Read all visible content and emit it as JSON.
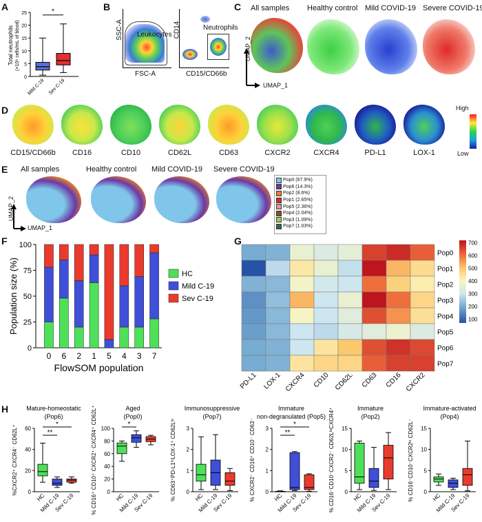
{
  "panels": {
    "a": "A",
    "b": "B",
    "c": "C",
    "d": "D",
    "e": "E",
    "f": "F",
    "g": "G",
    "h": "H"
  },
  "panel_a": {
    "ylabel_line1": "Total neutrophils",
    "ylabel_line2": "(×10⁶ cells/mL of blood)",
    "sig": "*",
    "categories": [
      "Mild C-19",
      "Sev C-19"
    ],
    "ticks": [
      "0",
      "5",
      "10",
      "15",
      "20",
      "25"
    ],
    "colors": [
      "#5b6fd8",
      "#e0302f"
    ]
  },
  "panel_b": {
    "plot1": {
      "ylabel": "SSC-A",
      "xlabel": "FSC-A",
      "gate": "Leukocytes"
    },
    "plot2": {
      "ylabel": "CD14",
      "xlabel": "CD15/CD66b",
      "gate": "Neutrophils"
    }
  },
  "panel_c": {
    "titles": [
      "All samples",
      "Healthy control",
      "Mild COVID-19",
      "Severe COVID-19"
    ],
    "axis_x": "UMAP_1",
    "axis_y": "UMAP_2"
  },
  "panel_d": {
    "markers": [
      "CD15/CD66b",
      "CD16",
      "CD10",
      "CD62L",
      "CD63",
      "CXCR2",
      "CXCR4",
      "PD-L1",
      "LOX-1"
    ],
    "scale_high": "High",
    "scale_low": "Low"
  },
  "panel_e": {
    "titles": [
      "All samples",
      "Healthy control",
      "Mild COVID-19",
      "Severe COVID-19"
    ],
    "axis_x": "UMAP_1",
    "axis_y": "UMAP_2",
    "legend": [
      {
        "label": "Pop0 (67.9%)",
        "color": "#7fc6ea"
      },
      {
        "label": "Pop6 (14.3%)",
        "color": "#6a3aa6"
      },
      {
        "label": "Pop2 (8.6%)",
        "color": "#e8822a"
      },
      {
        "label": "Pop1 (2.65%)",
        "color": "#d9262c"
      },
      {
        "label": "Pop5 (2.36%)",
        "color": "#d89aa0"
      },
      {
        "label": "Pop4 (2.04%)",
        "color": "#8a4b2a"
      },
      {
        "label": "Pop3 (1.09%)",
        "color": "#9ad14a"
      },
      {
        "label": "Pop7 (1.03%)",
        "color": "#2e6b52"
      }
    ]
  },
  "chart_data": [
    {
      "type": "bar",
      "stacked": true,
      "xlabel": "FlowSOM population",
      "ylabel": "Population size (%)",
      "ylim": [
        0,
        100
      ],
      "yticks": [
        "0",
        "25",
        "50",
        "75",
        "100"
      ],
      "categories": [
        "0",
        "6",
        "2",
        "1",
        "5",
        "4",
        "3",
        "7"
      ],
      "series": [
        {
          "name": "HC",
          "color": "#4fe05a",
          "values": [
            25,
            48,
            20,
            63,
            0,
            20,
            20,
            28
          ]
        },
        {
          "name": "Mild C-19",
          "color": "#3f4fd8",
          "values": [
            53,
            37,
            45,
            27,
            8,
            40,
            49,
            64
          ]
        },
        {
          "name": "Sev C-19",
          "color": "#ea3a2e",
          "values": [
            22,
            15,
            35,
            10,
            92,
            40,
            31,
            8
          ]
        }
      ],
      "legend_position": "right"
    },
    {
      "type": "heatmap",
      "columns": [
        "PD-L1",
        "LOX-1",
        "CXCR4",
        "CD10",
        "CD62L",
        "CD63",
        "CD16",
        "CXCR2"
      ],
      "rows": [
        "Pop0",
        "Pop1",
        "Pop2",
        "Pop3",
        "Pop4",
        "Pop5",
        "Pop6",
        "Pop7"
      ],
      "colorbar_ticks": [
        "100",
        "200",
        "300",
        "400",
        "500",
        "600",
        "700"
      ],
      "values": [
        [
          200,
          210,
          360,
          330,
          350,
          660,
          690,
          620
        ],
        [
          70,
          280,
          430,
          360,
          290,
          760,
          520,
          460
        ],
        [
          210,
          220,
          380,
          310,
          300,
          600,
          480,
          420
        ],
        [
          160,
          230,
          520,
          300,
          360,
          730,
          600,
          470
        ],
        [
          170,
          220,
          390,
          300,
          340,
          640,
          560,
          450
        ],
        [
          180,
          220,
          300,
          280,
          320,
          340,
          370,
          330
        ],
        [
          200,
          210,
          300,
          440,
          500,
          640,
          680,
          650
        ],
        [
          200,
          210,
          440,
          470,
          470,
          620,
          660,
          660
        ]
      ]
    },
    {
      "type": "box",
      "title": "Mature-homeostatic\n(Pop6)",
      "ylabel": "%CXCR2⁺ CXCR4⁻ CD62L⁺",
      "categories": [
        "HC",
        "Mild C-19",
        "Sev C-19"
      ],
      "ylim": [
        0,
        60
      ],
      "yticks": [
        "0",
        "20",
        "40",
        "60"
      ],
      "sig": [
        "**",
        "*"
      ],
      "boxes": [
        {
          "min": 9,
          "q1": 15,
          "median": 19,
          "q3": 26,
          "max": 46
        },
        {
          "min": 4,
          "q1": 6,
          "median": 8,
          "q3": 12,
          "max": 14
        },
        {
          "min": 8,
          "q1": 9,
          "median": 11,
          "q3": 12,
          "max": 14
        }
      ]
    },
    {
      "type": "box",
      "title": "Aged\n(Pop0)",
      "ylabel": "% CD16⁺ CD10⁺ CXCR2⁺ CXCR4⁺ CD62L⁺",
      "categories": [
        "HC",
        "Mild C-19",
        "Sev C-19"
      ],
      "ylim": [
        0,
        100
      ],
      "yticks": [
        "0",
        "20",
        "40",
        "60",
        "80",
        "100"
      ],
      "sig": [
        "*"
      ],
      "boxes": [
        {
          "min": 48,
          "q1": 60,
          "median": 72,
          "q3": 77,
          "max": 80
        },
        {
          "min": 70,
          "q1": 78,
          "median": 85,
          "q3": 90,
          "max": 96
        },
        {
          "min": 74,
          "q1": 79,
          "median": 83,
          "q3": 87,
          "max": 89
        }
      ]
    },
    {
      "type": "box",
      "title": "Immunosuppressive\n(Pop7)",
      "ylabel": "% CD63⁺PD-L1ʰⁱLOX-1⁺ CD62Lˡᵒ",
      "categories": [
        "HC",
        "Mild C-19",
        "Sev C-19"
      ],
      "ylim": [
        0,
        3
      ],
      "yticks": [
        "0",
        "1",
        "2",
        "3"
      ],
      "sig": [],
      "boxes": [
        {
          "min": 0.1,
          "q1": 0.5,
          "median": 0.8,
          "q3": 1.3,
          "max": 2.6
        },
        {
          "min": 0.1,
          "q1": 0.3,
          "median": 0.9,
          "q3": 1.5,
          "max": 2.7
        },
        {
          "min": 0.05,
          "q1": 0.3,
          "median": 0.5,
          "q3": 0.9,
          "max": 1.1
        }
      ]
    },
    {
      "type": "box",
      "title": "Immature\nnon-degranulated (Pop5)",
      "ylabel": "% CXCR2⁻ CD16⁺ CD10⁻ CD63⁻",
      "categories": [
        "HC",
        "Mild C-19",
        "Sev C-19"
      ],
      "ylim": [
        0,
        3
      ],
      "yticks": [
        "0",
        "1",
        "2",
        "3"
      ],
      "sig": [
        "**",
        "*"
      ],
      "boxes": [
        {
          "min": 0,
          "q1": 0,
          "median": 0,
          "q3": 0.02,
          "max": 0.04
        },
        {
          "min": 0.05,
          "q1": 0.1,
          "median": 0.2,
          "q3": 1.85,
          "max": 1.9
        },
        {
          "min": 0.02,
          "q1": 0.1,
          "median": 0.2,
          "q3": 0.8,
          "max": 0.85
        }
      ]
    },
    {
      "type": "box",
      "title": "Immature\n(Pop2)",
      "ylabel": "% CD16⁻CD10⁻CXCR2⁻ CD62LˡᵒCXCR4⁺",
      "categories": [
        "HC",
        "Mild C-19",
        "Sev C-19"
      ],
      "ylim": [
        0,
        15
      ],
      "yticks": [
        "0",
        "5",
        "10",
        "15"
      ],
      "sig": [],
      "boxes": [
        {
          "min": 0.5,
          "q1": 2,
          "median": 3.5,
          "q3": 11.5,
          "max": 12
        },
        {
          "min": 0.3,
          "q1": 1,
          "median": 2.5,
          "q3": 5.5,
          "max": 10.5
        },
        {
          "min": 0.5,
          "q1": 3,
          "median": 8,
          "q3": 11,
          "max": 14
        }
      ]
    },
    {
      "type": "box",
      "title": "Immature-activated\n(Pop4)",
      "ylabel": "% CD16⁻CD10⁻CXCR2ˡᵒ CD62L⁻",
      "categories": [
        "HC",
        "Mild C-19",
        "Sev C-19"
      ],
      "ylim": [
        0,
        15
      ],
      "yticks": [
        "0",
        "5",
        "10",
        "15"
      ],
      "sig": [],
      "boxes": [
        {
          "min": 1.5,
          "q1": 2.3,
          "median": 3,
          "q3": 3.5,
          "max": 4.2
        },
        {
          "min": 0.5,
          "q1": 1,
          "median": 2,
          "q3": 2.8,
          "max": 3.2
        },
        {
          "min": 0.2,
          "q1": 1.5,
          "median": 4,
          "q3": 5.5,
          "max": 12
        }
      ]
    }
  ],
  "box_colors": [
    "#4fe05a",
    "#3f4fd8",
    "#ea3a2e"
  ]
}
